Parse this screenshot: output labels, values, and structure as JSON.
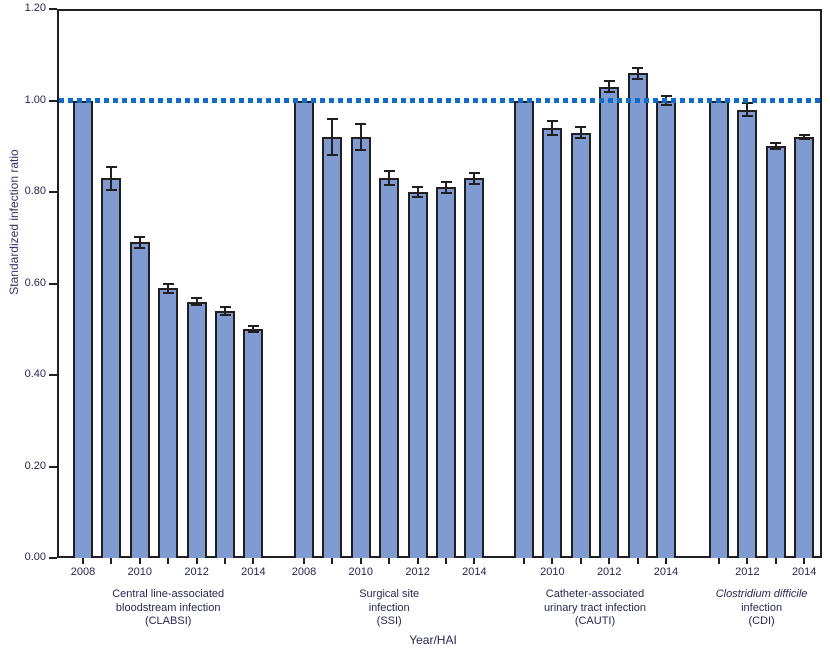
{
  "figure": {
    "y_axis_title": "Standardized infection ratio",
    "x_axis_title": "Year/HAI"
  },
  "chart_data": {
    "type": "bar",
    "title": "",
    "ylabel": "Standardized infection ratio",
    "xlabel": "Year/HAI",
    "ylim": [
      0.0,
      1.2
    ],
    "yticks": [
      0.0,
      0.2,
      0.4,
      0.6,
      0.8,
      1.0,
      1.2
    ],
    "reference_line": 1.0,
    "grid": false,
    "legend": false,
    "error_bars": true,
    "colors": {
      "bar_fill": "#7f9bd1",
      "bar_border": "#231f20",
      "error_bar": "#231f20",
      "reference_line": "#0e6bc8",
      "axis": "#231f20"
    },
    "groups": [
      {
        "name": "CLABSI",
        "label_lines": [
          "Central line-associated",
          "bloodstream infection",
          "(CLABSI)"
        ],
        "italic_first_line": false,
        "years": [
          2008,
          2009,
          2010,
          2011,
          2012,
          2013,
          2014
        ],
        "labeled_years": [
          2008,
          2010,
          2012,
          2014
        ],
        "values": [
          1.0,
          0.83,
          0.69,
          0.59,
          0.56,
          0.54,
          0.5
        ],
        "errors": [
          0,
          0.025,
          0.012,
          0.01,
          0.008,
          0.008,
          0.007
        ]
      },
      {
        "name": "SSI",
        "label_lines": [
          "Surgical site",
          "infection",
          "(SSI)"
        ],
        "italic_first_line": false,
        "years": [
          2008,
          2009,
          2010,
          2011,
          2012,
          2013,
          2014
        ],
        "labeled_years": [
          2008,
          2010,
          2012,
          2014
        ],
        "values": [
          1.0,
          0.92,
          0.92,
          0.83,
          0.8,
          0.81,
          0.83
        ],
        "errors": [
          0,
          0.04,
          0.028,
          0.015,
          0.012,
          0.012,
          0.012
        ]
      },
      {
        "name": "CAUTI",
        "label_lines": [
          "Catheter-associated",
          "urinary tract infection",
          "(CAUTI)"
        ],
        "italic_first_line": false,
        "years": [
          2009,
          2010,
          2011,
          2012,
          2013,
          2014
        ],
        "labeled_years": [
          2010,
          2012,
          2014
        ],
        "values": [
          1.0,
          0.94,
          0.93,
          1.03,
          1.06,
          1.0
        ],
        "errors": [
          0,
          0.015,
          0.013,
          0.012,
          0.012,
          0.01
        ]
      },
      {
        "name": "CDI",
        "label_lines": [
          "Clostridium difficile",
          "infection",
          "(CDI)"
        ],
        "italic_first_line": true,
        "years": [
          2011,
          2012,
          2013,
          2014
        ],
        "labeled_years": [
          2012,
          2014
        ],
        "values": [
          1.0,
          0.98,
          0.9,
          0.92
        ],
        "errors": [
          0,
          0.014,
          0.007,
          0.005
        ]
      }
    ]
  }
}
